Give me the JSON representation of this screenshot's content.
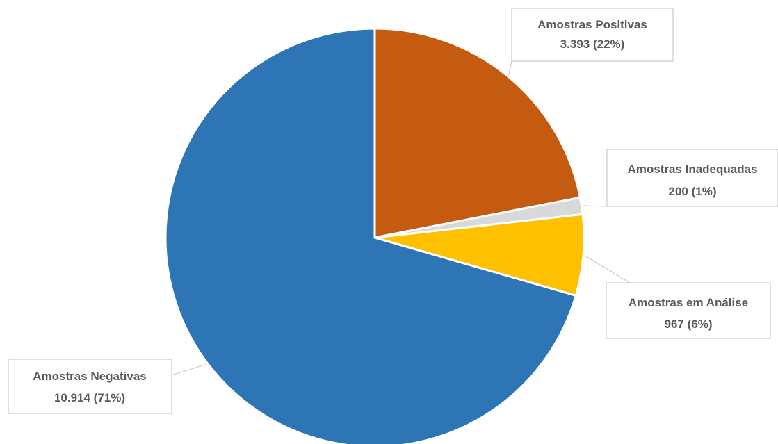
{
  "chart_data": {
    "type": "pie",
    "title": "",
    "slices": [
      {
        "label": "Amostras Positivas",
        "value": 3393,
        "value_text": "3.393",
        "percent_text": "22%",
        "color": "#C55A11"
      },
      {
        "label": "Amostras Inadequadas",
        "value": 200,
        "value_text": "200",
        "percent_text": "1%",
        "color": "#D9D9D9"
      },
      {
        "label": "Amostras em Análise",
        "value": 967,
        "value_text": "967",
        "percent_text": "6%",
        "color": "#FFC000"
      },
      {
        "label": "Amostras Negativas",
        "value": 10914,
        "value_text": "10.914",
        "percent_text": "71%",
        "color": "#2E75B6"
      }
    ],
    "start": "12 o'clock",
    "direction": "clockwise",
    "legend": "none",
    "data_labels": "callouts with leader lines"
  }
}
